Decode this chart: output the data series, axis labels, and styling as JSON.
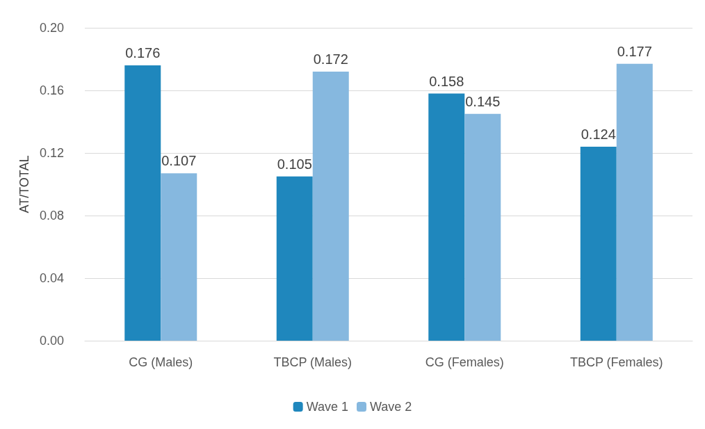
{
  "chart_data": {
    "type": "bar",
    "ylabel": "AT/TOTAL",
    "categories": [
      "CG (Males)",
      "TBCP (Males)",
      "CG (Females)",
      "TBCP (Females)"
    ],
    "series": [
      {
        "name": "Wave 1",
        "color": "#1f87bd",
        "values": [
          0.176,
          0.105,
          0.158,
          0.124
        ]
      },
      {
        "name": "Wave 2",
        "color": "#86b8df",
        "values": [
          0.107,
          0.172,
          0.145,
          0.177
        ]
      }
    ],
    "ylim": [
      0,
      0.2
    ],
    "yticks": [
      {
        "value": 0,
        "label": "0.00"
      },
      {
        "value": 0.04,
        "label": "0.04"
      },
      {
        "value": 0.08,
        "label": "0.08"
      },
      {
        "value": 0.12,
        "label": "0.12"
      },
      {
        "value": 0.16,
        "label": "0.16"
      },
      {
        "value": 0.2,
        "label": "0.20"
      }
    ],
    "grid": "y",
    "legend": "bottom",
    "data_labels": true
  }
}
